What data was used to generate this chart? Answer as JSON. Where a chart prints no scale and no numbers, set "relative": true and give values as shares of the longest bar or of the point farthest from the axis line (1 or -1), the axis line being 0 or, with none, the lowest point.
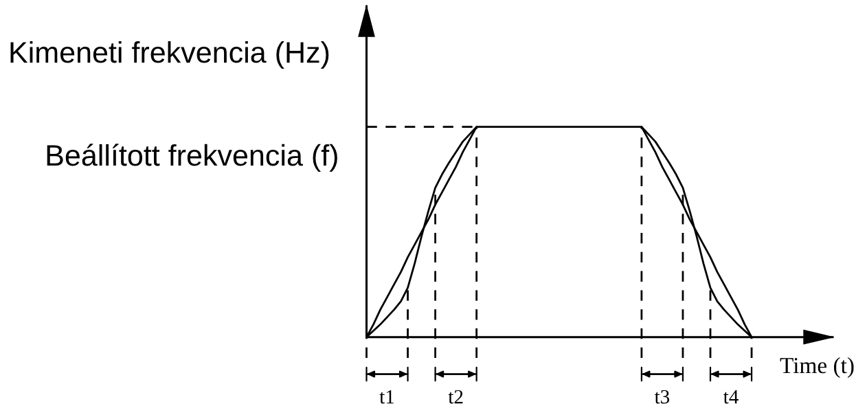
{
  "chart_data": {
    "type": "line",
    "relative": true,
    "tick_labels": false,
    "grid": "x",
    "xlabel": "Time (t)",
    "ylabel": "Kimeneti frekvencia (Hz)",
    "categories": [
      null,
      null,
      null,
      null,
      null,
      null,
      null,
      null,
      null,
      null,
      null,
      null,
      null,
      null,
      null,
      null,
      null,
      null,
      null,
      null,
      null,
      null,
      null,
      null,
      null,
      null,
      null,
      null,
      null,
      null,
      null,
      null,
      null,
      null,
      null,
      null,
      null,
      null,
      null,
      null,
      null,
      null,
      null,
      null,
      null,
      null,
      null,
      null,
      null,
      null,
      null,
      null,
      null,
      null,
      null,
      null,
      null
    ],
    "series": [
      {
        "color": "#000000",
        "values": [
          0,
          0.06,
          0.13,
          0.19,
          0.25,
          0.31,
          0.38,
          0.44,
          0.5,
          0.56,
          0.63,
          0.69,
          0.75,
          0.81,
          0.88,
          0.94,
          1,
          1,
          1,
          1,
          1,
          1,
          1,
          1,
          1,
          1,
          1,
          1,
          1,
          1,
          1,
          1,
          1,
          1,
          1,
          1,
          1,
          1,
          1,
          1,
          1,
          0.94,
          0.88,
          0.81,
          0.75,
          0.69,
          0.63,
          0.56,
          0.5,
          0.44,
          0.38,
          0.31,
          0.25,
          0.19,
          0.13,
          0.06,
          0
        ]
      },
      {
        "color": "#000000",
        "values": [
          0,
          0.03,
          0.06,
          0.095,
          0.13,
          0.17,
          0.235,
          0.35,
          0.48,
          0.6,
          0.71,
          0.775,
          0.83,
          0.88,
          0.93,
          0.965,
          1,
          null,
          null,
          null,
          null,
          null,
          null,
          null,
          null,
          null,
          null,
          null,
          null,
          null,
          null,
          null,
          null,
          null,
          null,
          null,
          null,
          null,
          null,
          null,
          1,
          0.965,
          0.93,
          0.88,
          0.83,
          0.775,
          0.71,
          0.6,
          0.48,
          0.35,
          0.235,
          0.17,
          0.13,
          0.095,
          0.06,
          0.03,
          0
        ]
      }
    ],
    "ref_lines": [
      {
        "axis": "y",
        "value": 1,
        "label": "Beállított frekvencia (f)",
        "color": "#000000",
        "line_style": "dashed"
      }
    ],
    "annotations": [
      "t1",
      "t2",
      "t3",
      "t4"
    ]
  }
}
